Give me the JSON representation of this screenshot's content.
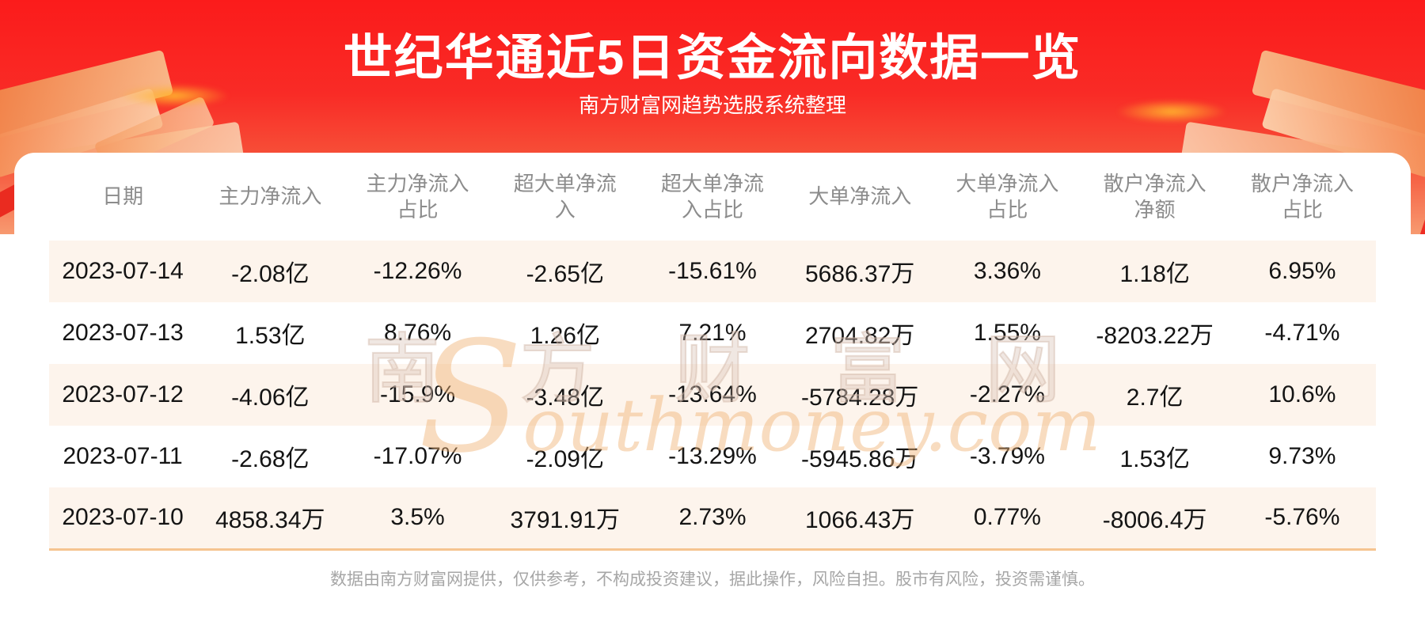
{
  "banner": {
    "title": "世纪华通近5日资金流向数据一览",
    "subtitle": "南方财富网趋势选股系统整理",
    "bg_top_color": "#fb1b1b",
    "bg_bottom_color": "#f79a70",
    "deco_block_color": "#f48a50",
    "deco_glow_color": "#ffb12e"
  },
  "table": {
    "columns": [
      "日期",
      "主力净流入",
      "主力净流入\n占比",
      "超大单净流\n入",
      "超大单净流\n入占比",
      "大单净流入",
      "大单净流入\n占比",
      "散户净流入\n净额",
      "散户净流入\n占比"
    ],
    "rows": [
      [
        "2023-07-14",
        "-2.08亿",
        "-12.26%",
        "-2.65亿",
        "-15.61%",
        "5686.37万",
        "3.36%",
        "1.18亿",
        "6.95%"
      ],
      [
        "2023-07-13",
        "1.53亿",
        "8.76%",
        "1.26亿",
        "7.21%",
        "2704.82万",
        "1.55%",
        "-8203.22万",
        "-4.71%"
      ],
      [
        "2023-07-12",
        "-4.06亿",
        "-15.9%",
        "-3.48亿",
        "-13.64%",
        "-5784.28万",
        "-2.27%",
        "2.7亿",
        "10.6%"
      ],
      [
        "2023-07-11",
        "-2.68亿",
        "-17.07%",
        "-2.09亿",
        "-13.29%",
        "-5945.86万",
        "-3.79%",
        "1.53亿",
        "9.73%"
      ],
      [
        "2023-07-10",
        "4858.34万",
        "3.5%",
        "3791.91万",
        "2.73%",
        "1066.43万",
        "0.77%",
        "-8006.4万",
        "-5.76%"
      ]
    ],
    "stripe_color": "#fdf4ec",
    "bottom_border_color": "#f6c490",
    "header_text_color": "#8c8c8c"
  },
  "watermark": {
    "cn": "南方财富网",
    "en": "Southmoney.com"
  },
  "footer": {
    "disclaimer": "数据由南方财富网提供，仅供参考，不构成投资建议，据此操作，风险自担。股市有风险，投资需谨慎。"
  },
  "chart_data": {
    "type": "table",
    "title": "世纪华通近5日资金流向数据一览",
    "subtitle": "南方财富网趋势选股系统整理",
    "columns": [
      "日期",
      "主力净流入",
      "主力净流入占比",
      "超大单净流入",
      "超大单净流入占比",
      "大单净流入",
      "大单净流入占比",
      "散户净流入净额",
      "散户净流入占比"
    ],
    "rows": [
      [
        "2023-07-14",
        "-2.08亿",
        "-12.26%",
        "-2.65亿",
        "-15.61%",
        "5686.37万",
        "3.36%",
        "1.18亿",
        "6.95%"
      ],
      [
        "2023-07-13",
        "1.53亿",
        "8.76%",
        "1.26亿",
        "7.21%",
        "2704.82万",
        "1.55%",
        "-8203.22万",
        "-4.71%"
      ],
      [
        "2023-07-12",
        "-4.06亿",
        "-15.9%",
        "-3.48亿",
        "-13.64%",
        "-5784.28万",
        "-2.27%",
        "2.7亿",
        "10.6%"
      ],
      [
        "2023-07-11",
        "-2.68亿",
        "-17.07%",
        "-2.09亿",
        "-13.29%",
        "-5945.86万",
        "-3.79%",
        "1.53亿",
        "9.73%"
      ],
      [
        "2023-07-10",
        "4858.34万",
        "3.5%",
        "3791.91万",
        "2.73%",
        "1066.43万",
        "0.77%",
        "-8006.4万",
        "-5.76%"
      ]
    ]
  }
}
